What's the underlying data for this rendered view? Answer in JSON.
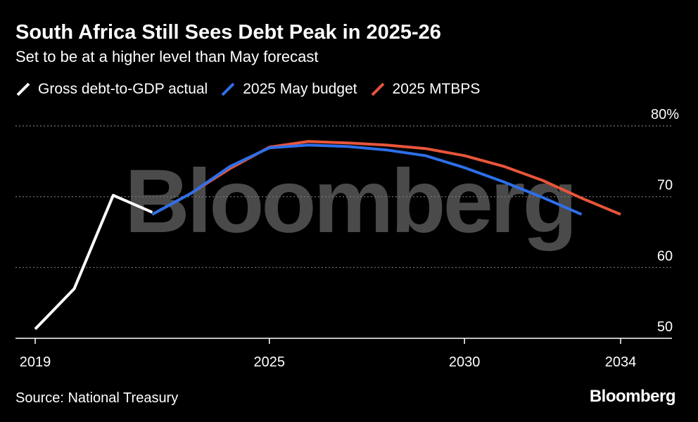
{
  "title": "South Africa Still Sees Debt Peak in 2025-26",
  "subtitle": "Set to be at a higher level than May forecast",
  "source": "Source: National Treasury",
  "brand": "Bloomberg",
  "watermark": "Bloomberg",
  "colors": {
    "background": "#000000",
    "actual": "#ffffff",
    "may_budget": "#2e6fe8",
    "mtbps": "#e8553a",
    "grid": "#7a7a7a",
    "watermark": "#4a4a4a"
  },
  "chart_data": {
    "type": "line",
    "title": "South Africa Still Sees Debt Peak in 2025-26",
    "subtitle": "Set to be at a higher level than May forecast",
    "xlabel": "",
    "ylabel": "",
    "xlim": [
      2019,
      2034
    ],
    "ylim": [
      50,
      80
    ],
    "x_ticks": [
      {
        "value": 2019,
        "label": "2019"
      },
      {
        "value": 2025,
        "label": "2025"
      },
      {
        "value": 2030,
        "label": "2030"
      },
      {
        "value": 2034,
        "label": "2034"
      }
    ],
    "y_ticks": [
      {
        "value": 80,
        "label": "80%"
      },
      {
        "value": 70,
        "label": "70"
      },
      {
        "value": 60,
        "label": "60"
      },
      {
        "value": 50,
        "label": "50"
      }
    ],
    "grid": "horizontal dotted",
    "legend_position": "top",
    "series": [
      {
        "name": "2025 MTBPS",
        "color": "#e8553a",
        "points": [
          [
            2022,
            67.5
          ],
          [
            2023,
            70.5
          ],
          [
            2024,
            74
          ],
          [
            2025,
            77
          ],
          [
            2026,
            77.8
          ],
          [
            2027,
            77.6
          ],
          [
            2028,
            77.3
          ],
          [
            2029,
            76.8
          ],
          [
            2030,
            75.8
          ],
          [
            2031,
            74.3
          ],
          [
            2032,
            72.3
          ],
          [
            2033,
            69.8
          ],
          [
            2034,
            67.5
          ]
        ]
      },
      {
        "name": "2025 May budget",
        "color": "#2e6fe8",
        "points": [
          [
            2022,
            67.5
          ],
          [
            2023,
            70.5
          ],
          [
            2024,
            74.3
          ],
          [
            2025,
            76.9
          ],
          [
            2026,
            77.3
          ],
          [
            2027,
            77.1
          ],
          [
            2028,
            76.6
          ],
          [
            2029,
            75.8
          ],
          [
            2030,
            74.1
          ],
          [
            2031,
            72.1
          ],
          [
            2032,
            69.9
          ],
          [
            2033,
            67.5
          ]
        ]
      },
      {
        "name": "Gross debt-to-GDP actual",
        "color": "#ffffff",
        "points": [
          [
            2019,
            51.3
          ],
          [
            2020,
            57
          ],
          [
            2021,
            70.2
          ],
          [
            2022,
            67.8
          ]
        ]
      }
    ]
  }
}
